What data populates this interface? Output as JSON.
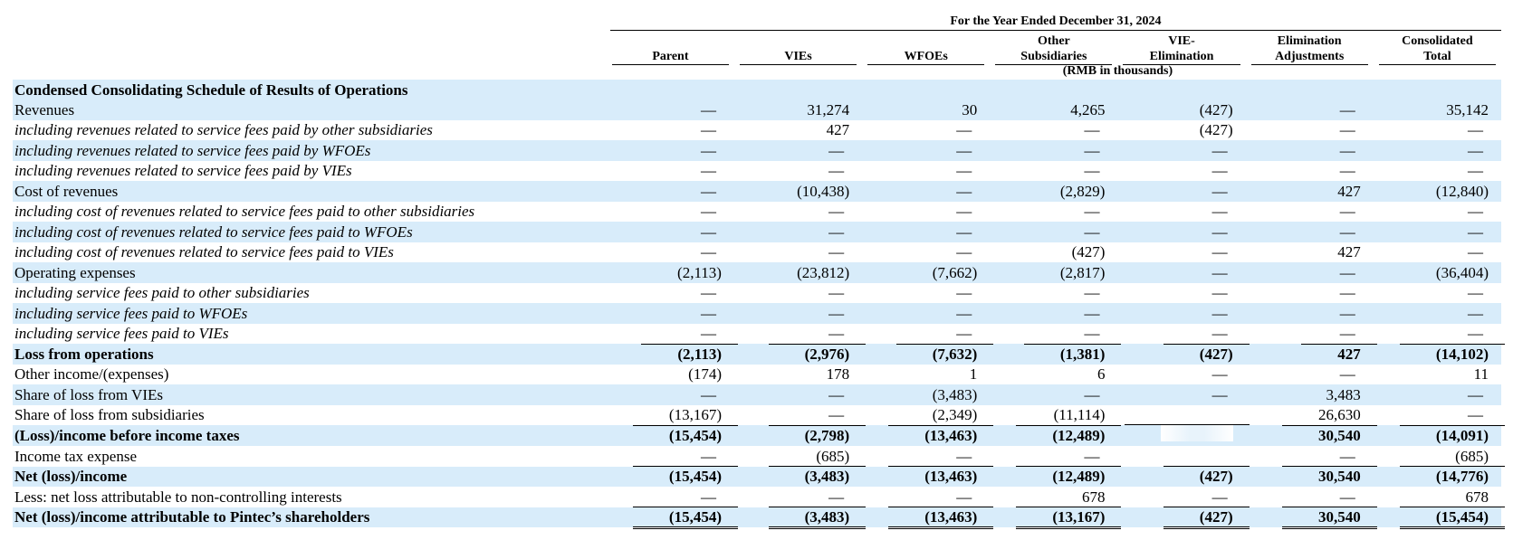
{
  "header": {
    "period": "For the Year Ended December 31, 2024",
    "columns": [
      "Parent",
      "VIEs",
      "WFOEs",
      "Other\nSubsidiaries",
      "VIE-\nElimination",
      "Elimination\nAdjustments",
      "Consolidated\nTotal"
    ],
    "units": "(RMB in thousands)"
  },
  "table": {
    "title": "Condensed Consolidating Schedule of Results of Operations",
    "rows": [
      {
        "label": "Revenues",
        "style": "normal",
        "values": [
          "—",
          "31,274",
          "30",
          "4,265",
          "(427)",
          "—",
          "35,142"
        ]
      },
      {
        "label": "including revenues related to service fees paid by other subsidiaries",
        "style": "italic",
        "values": [
          "—",
          "427",
          "—",
          "—",
          "(427)",
          "—",
          "—"
        ]
      },
      {
        "label": "including revenues related to service fees paid by WFOEs",
        "style": "italic",
        "values": [
          "—",
          "—",
          "—",
          "—",
          "—",
          "—",
          "—"
        ]
      },
      {
        "label": "including revenues related to service fees paid by VIEs",
        "style": "italic",
        "values": [
          "—",
          "—",
          "—",
          "—",
          "—",
          "—",
          "—"
        ]
      },
      {
        "label": "Cost of revenues",
        "style": "normal",
        "values": [
          "—",
          "(10,438)",
          "—",
          "(2,829)",
          "—",
          "427",
          "(12,840)"
        ]
      },
      {
        "label": "including cost of revenues related to service fees paid to other subsidiaries",
        "style": "italic",
        "values": [
          "—",
          "—",
          "—",
          "—",
          "—",
          "—",
          "—"
        ]
      },
      {
        "label": "including cost of revenues related to service fees paid to WFOEs",
        "style": "italic",
        "values": [
          "—",
          "—",
          "—",
          "—",
          "—",
          "—",
          "—"
        ]
      },
      {
        "label": "including cost of revenues related to service fees paid to VIEs",
        "style": "italic",
        "values": [
          "—",
          "—",
          "—",
          "(427)",
          "—",
          "427",
          "—"
        ]
      },
      {
        "label": "Operating expenses",
        "style": "normal",
        "values": [
          "(2,113)",
          "(23,812)",
          "(7,662)",
          "(2,817)",
          "—",
          "—",
          "(36,404)"
        ]
      },
      {
        "label": "including service fees paid to other subsidiaries",
        "style": "italic",
        "values": [
          "—",
          "—",
          "—",
          "—",
          "—",
          "—",
          "—"
        ]
      },
      {
        "label": "including service fees paid to WFOEs",
        "style": "italic",
        "values": [
          "—",
          "—",
          "—",
          "—",
          "—",
          "—",
          "—"
        ]
      },
      {
        "label": "including service fees paid to VIEs",
        "style": "italic",
        "values": [
          "—",
          "—",
          "—",
          "—",
          "—",
          "—",
          "—"
        ]
      },
      {
        "label": "Loss from operations",
        "style": "bold",
        "values": [
          "(2,113)",
          "(2,976)",
          "(7,632)",
          "(1,381)",
          "(427)",
          "427",
          "(14,102)"
        ]
      },
      {
        "label": "Other income/(expenses)",
        "style": "normal",
        "values": [
          "(174)",
          "178",
          "1",
          "6",
          "—",
          "—",
          "11"
        ]
      },
      {
        "label": "Share of loss from VIEs",
        "style": "normal",
        "values": [
          "—",
          "—",
          "(3,483)",
          "—",
          "—",
          "3,483",
          "—"
        ]
      },
      {
        "label": "Share of loss from subsidiaries",
        "style": "normal",
        "values": [
          "(13,167)",
          "—",
          "(2,349)",
          "(11,114)",
          "",
          "26,630",
          "—"
        ]
      },
      {
        "label": "(Loss)/income before income taxes",
        "style": "bold",
        "values": [
          "(15,454)",
          "(2,798)",
          "(13,463)",
          "(12,489)",
          "",
          "30,540",
          "(14,091)"
        ]
      },
      {
        "label": "Income tax expense",
        "style": "normal",
        "values": [
          "—",
          "(685)",
          "—",
          "—",
          "",
          "—",
          "(685)"
        ]
      },
      {
        "label": "Net (loss)/income",
        "style": "bold",
        "values": [
          "(15,454)",
          "(3,483)",
          "(13,463)",
          "(12,489)",
          "(427)",
          "30,540",
          "(14,776)"
        ]
      },
      {
        "label": "Less: net loss attributable to non-controlling interests",
        "style": "normal",
        "values": [
          "—",
          "—",
          "—",
          "678",
          "—",
          "—",
          "678"
        ]
      },
      {
        "label": "Net (loss)/income attributable to Pintec’s shareholders",
        "style": "bold",
        "values": [
          "(15,454)",
          "(3,483)",
          "(13,463)",
          "(13,167)",
          "(427)",
          "30,540",
          "(15,454)"
        ]
      }
    ]
  }
}
